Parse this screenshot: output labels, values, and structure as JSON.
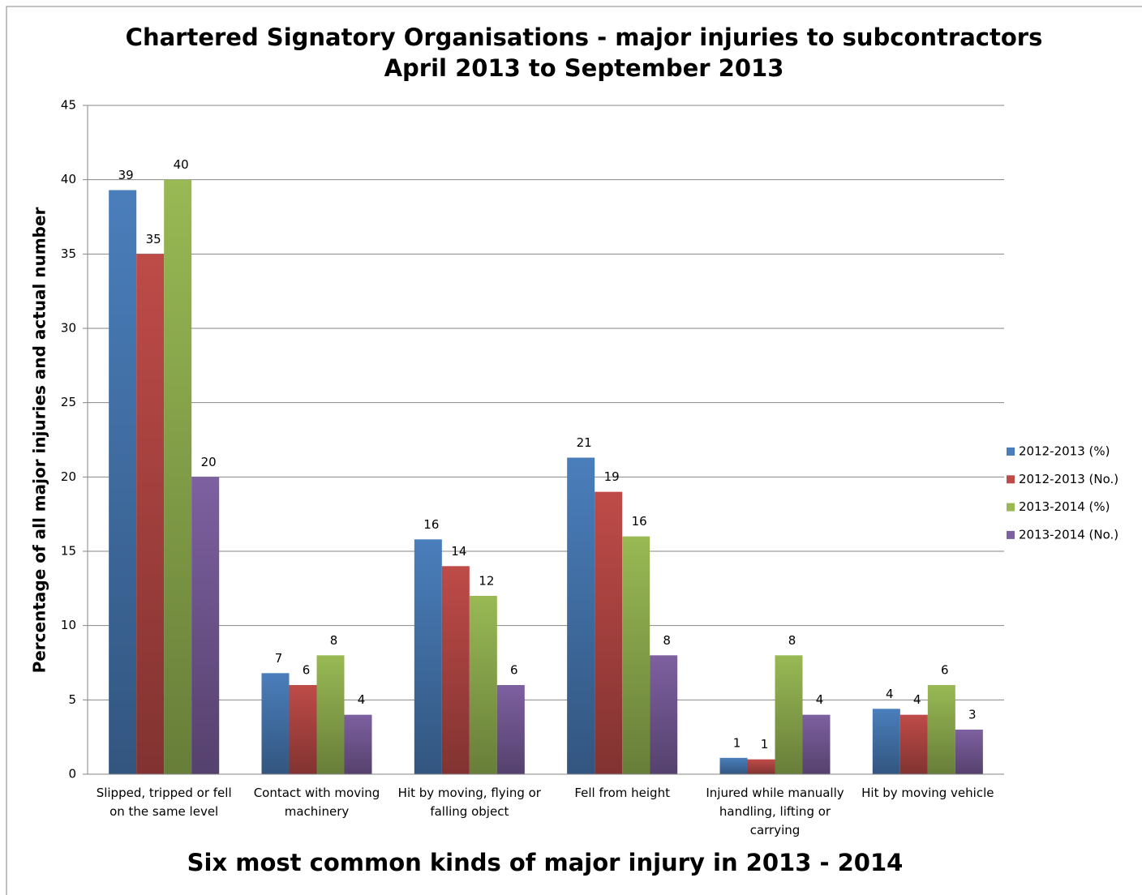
{
  "chart_data": {
    "type": "bar",
    "title": "Chartered Signatory Organisations - major injuries to subcontractors",
    "subtitle": "April 2013 to September 2013",
    "x_label": "Six most common kinds of major injury in 2013  - 2014",
    "y_label": "Percentage of all major injuries and actual number",
    "categories": [
      "Slipped, tripped or fell on the same level",
      "Contact with moving machinery",
      "Hit by moving, flying or falling object",
      "Fell from height",
      "Injured while manually handling, lifting or carrying",
      "Hit by moving vehicle"
    ],
    "series": [
      {
        "name": "2012-2013 (%)",
        "color": "#4a7ebb",
        "values": [
          39.3,
          6.8,
          15.8,
          21.3,
          1.1,
          4.4
        ],
        "value_labels": [
          "39",
          "7",
          "16",
          "21",
          "1",
          "4"
        ]
      },
      {
        "name": "2012-2013 (No.)",
        "color": "#be4b48",
        "values": [
          35,
          6,
          14,
          19,
          1,
          4
        ]
      },
      {
        "name": "2013-2014 (%)",
        "color": "#98b954",
        "values": [
          40,
          8,
          12,
          16,
          8,
          6
        ]
      },
      {
        "name": "2013-2014 (No.)",
        "color": "#7d60a0",
        "values": [
          20,
          4,
          6,
          8,
          4,
          3
        ]
      }
    ],
    "ylim": [
      0,
      45
    ],
    "yticks": [
      0,
      5,
      10,
      15,
      20,
      25,
      30,
      35,
      40,
      45
    ],
    "grid": true,
    "legend": "right"
  }
}
